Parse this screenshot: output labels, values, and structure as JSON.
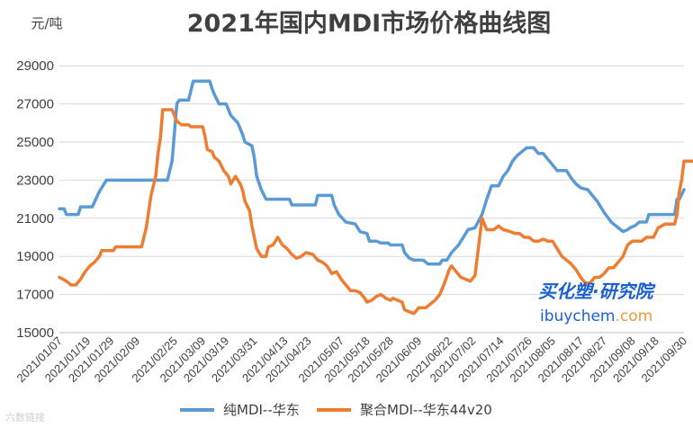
{
  "chart_data": {
    "type": "line",
    "title": "2021年国内MDI市场价格曲线图",
    "ylabel": "元/吨",
    "ylim": [
      15000,
      30000
    ],
    "yticks": [
      15000,
      17000,
      19000,
      21000,
      23000,
      25000,
      27000,
      29000
    ],
    "ytick_labels": [
      "15000",
      "17000",
      "19000",
      "21000",
      "23000",
      "25000",
      "27000",
      "29000"
    ],
    "x_range": [
      0,
      266
    ],
    "x_ticks": [
      {
        "label": "2021/01/07",
        "i": 0
      },
      {
        "label": "2021/01/19",
        "i": 12
      },
      {
        "label": "2021/01/29",
        "i": 22
      },
      {
        "label": "2021/02/09",
        "i": 33
      },
      {
        "label": "2021/02/25",
        "i": 49
      },
      {
        "label": "2021/03/09",
        "i": 61
      },
      {
        "label": "2021/03/19",
        "i": 71
      },
      {
        "label": "2021/03/31",
        "i": 83
      },
      {
        "label": "2021/04/13",
        "i": 96
      },
      {
        "label": "2021/04/23",
        "i": 106
      },
      {
        "label": "2021/05/07",
        "i": 120
      },
      {
        "label": "2021/05/18",
        "i": 131
      },
      {
        "label": "2021/05/28",
        "i": 141
      },
      {
        "label": "2021/06/09",
        "i": 153
      },
      {
        "label": "2021/06/22",
        "i": 166
      },
      {
        "label": "2021/07/02",
        "i": 176
      },
      {
        "label": "2021/07/14",
        "i": 188
      },
      {
        "label": "2021/07/26",
        "i": 200
      },
      {
        "label": "2021/08/05",
        "i": 210
      },
      {
        "label": "2021/08/17",
        "i": 222
      },
      {
        "label": "2021/08/27",
        "i": 232
      },
      {
        "label": "2021/09/08",
        "i": 244
      },
      {
        "label": "2021/09/18",
        "i": 254
      },
      {
        "label": "2021/09/30",
        "i": 266
      }
    ],
    "grid": true,
    "legend_position": "bottom",
    "series": [
      {
        "name": "纯MDI--华东",
        "color": "#5b9bd5",
        "points": [
          [
            0,
            21500
          ],
          [
            2,
            21500
          ],
          [
            3,
            21200
          ],
          [
            8,
            21200
          ],
          [
            9,
            21600
          ],
          [
            14,
            21600
          ],
          [
            17,
            22400
          ],
          [
            20,
            23000
          ],
          [
            46,
            23000
          ],
          [
            48,
            24000
          ],
          [
            50,
            27000
          ],
          [
            51,
            27200
          ],
          [
            55,
            27200
          ],
          [
            56,
            27700
          ],
          [
            57,
            28200
          ],
          [
            64,
            28200
          ],
          [
            65,
            27800
          ],
          [
            66,
            27500
          ],
          [
            68,
            27000
          ],
          [
            71,
            27000
          ],
          [
            73,
            26400
          ],
          [
            76,
            26000
          ],
          [
            78,
            25400
          ],
          [
            79,
            25000
          ],
          [
            82,
            24800
          ],
          [
            83,
            24200
          ],
          [
            84,
            23200
          ],
          [
            86,
            22500
          ],
          [
            88,
            22000
          ],
          [
            98,
            22000
          ],
          [
            99,
            21700
          ],
          [
            109,
            21700
          ],
          [
            110,
            22200
          ],
          [
            116,
            22200
          ],
          [
            117,
            21700
          ],
          [
            119,
            21200
          ],
          [
            122,
            20800
          ],
          [
            126,
            20700
          ],
          [
            128,
            20300
          ],
          [
            131,
            20200
          ],
          [
            132,
            19800
          ],
          [
            135,
            19800
          ],
          [
            137,
            19700
          ],
          [
            140,
            19700
          ],
          [
            141,
            19600
          ],
          [
            146,
            19600
          ],
          [
            147,
            19200
          ],
          [
            149,
            18900
          ],
          [
            151,
            18800
          ],
          [
            155,
            18800
          ],
          [
            157,
            18600
          ],
          [
            162,
            18600
          ],
          [
            163,
            18800
          ],
          [
            165,
            18800
          ],
          [
            167,
            19200
          ],
          [
            170,
            19600
          ],
          [
            172,
            20000
          ],
          [
            174,
            20400
          ],
          [
            177,
            20500
          ],
          [
            180,
            21200
          ],
          [
            182,
            22000
          ],
          [
            184,
            22700
          ],
          [
            187,
            22700
          ],
          [
            189,
            23200
          ],
          [
            191,
            23500
          ],
          [
            193,
            24000
          ],
          [
            195,
            24300
          ],
          [
            197,
            24500
          ],
          [
            199,
            24700
          ],
          [
            202,
            24700
          ],
          [
            204,
            24400
          ],
          [
            206,
            24400
          ],
          [
            208,
            24100
          ],
          [
            210,
            23800
          ],
          [
            212,
            23500
          ],
          [
            216,
            23500
          ],
          [
            218,
            23100
          ],
          [
            220,
            22800
          ],
          [
            222,
            22600
          ],
          [
            225,
            22500
          ],
          [
            227,
            22200
          ],
          [
            229,
            21900
          ],
          [
            232,
            21300
          ],
          [
            235,
            20800
          ],
          [
            238,
            20500
          ],
          [
            240,
            20300
          ],
          [
            242,
            20400
          ],
          [
            243,
            20500
          ],
          [
            245,
            20600
          ],
          [
            247,
            20800
          ],
          [
            250,
            20800
          ],
          [
            251,
            21200
          ],
          [
            262,
            21200
          ],
          [
            263,
            22000
          ],
          [
            264,
            22000
          ],
          [
            266,
            22500
          ]
        ]
      },
      {
        "name": "聚合MDI--华东44v20",
        "color": "#ed7d31",
        "points": [
          [
            0,
            17900
          ],
          [
            3,
            17700
          ],
          [
            5,
            17500
          ],
          [
            7,
            17500
          ],
          [
            9,
            17800
          ],
          [
            11,
            18200
          ],
          [
            13,
            18500
          ],
          [
            15,
            18700
          ],
          [
            17,
            19000
          ],
          [
            18,
            19300
          ],
          [
            23,
            19300
          ],
          [
            24,
            19500
          ],
          [
            35,
            19500
          ],
          [
            37,
            20500
          ],
          [
            39,
            22200
          ],
          [
            41,
            23200
          ],
          [
            42,
            24400
          ],
          [
            43,
            25200
          ],
          [
            44,
            26700
          ],
          [
            48,
            26700
          ],
          [
            49,
            26400
          ],
          [
            50,
            26100
          ],
          [
            52,
            25900
          ],
          [
            55,
            25900
          ],
          [
            56,
            25800
          ],
          [
            61,
            25800
          ],
          [
            62,
            25300
          ],
          [
            63,
            24600
          ],
          [
            65,
            24500
          ],
          [
            66,
            24200
          ],
          [
            68,
            24000
          ],
          [
            70,
            23500
          ],
          [
            72,
            23200
          ],
          [
            73,
            22800
          ],
          [
            75,
            23200
          ],
          [
            77,
            22800
          ],
          [
            78,
            22500
          ],
          [
            79,
            21900
          ],
          [
            81,
            21400
          ],
          [
            82,
            20600
          ],
          [
            84,
            19400
          ],
          [
            86,
            19000
          ],
          [
            88,
            19000
          ],
          [
            89,
            19500
          ],
          [
            91,
            19600
          ],
          [
            93,
            20000
          ],
          [
            95,
            19600
          ],
          [
            97,
            19400
          ],
          [
            99,
            19100
          ],
          [
            101,
            18900
          ],
          [
            103,
            19000
          ],
          [
            105,
            19200
          ],
          [
            108,
            19100
          ],
          [
            110,
            18800
          ],
          [
            112,
            18700
          ],
          [
            114,
            18500
          ],
          [
            116,
            18100
          ],
          [
            118,
            18200
          ],
          [
            120,
            17800
          ],
          [
            122,
            17500
          ],
          [
            124,
            17200
          ],
          [
            126,
            17200
          ],
          [
            128,
            17100
          ],
          [
            130,
            16800
          ],
          [
            131,
            16600
          ],
          [
            133,
            16700
          ],
          [
            135,
            16900
          ],
          [
            137,
            17000
          ],
          [
            139,
            16800
          ],
          [
            141,
            16700
          ],
          [
            142,
            16800
          ],
          [
            144,
            16700
          ],
          [
            146,
            16600
          ],
          [
            147,
            16200
          ],
          [
            149,
            16100
          ],
          [
            151,
            16000
          ],
          [
            153,
            16300
          ],
          [
            156,
            16300
          ],
          [
            158,
            16500
          ],
          [
            160,
            16700
          ],
          [
            162,
            17000
          ],
          [
            164,
            17600
          ],
          [
            166,
            18300
          ],
          [
            167,
            18500
          ],
          [
            169,
            18200
          ],
          [
            171,
            17900
          ],
          [
            173,
            17800
          ],
          [
            175,
            17700
          ],
          [
            177,
            18000
          ],
          [
            179,
            20000
          ],
          [
            180,
            21000
          ],
          [
            181,
            20700
          ],
          [
            182,
            20400
          ],
          [
            185,
            20400
          ],
          [
            187,
            20600
          ],
          [
            189,
            20400
          ],
          [
            192,
            20300
          ],
          [
            194,
            20200
          ],
          [
            196,
            20200
          ],
          [
            198,
            20000
          ],
          [
            200,
            20000
          ],
          [
            202,
            19800
          ],
          [
            204,
            19800
          ],
          [
            206,
            19900
          ],
          [
            208,
            19800
          ],
          [
            210,
            19800
          ],
          [
            212,
            19400
          ],
          [
            214,
            19000
          ],
          [
            216,
            18800
          ],
          [
            218,
            18600
          ],
          [
            220,
            18300
          ],
          [
            222,
            17900
          ],
          [
            224,
            17600
          ],
          [
            226,
            17600
          ],
          [
            228,
            17900
          ],
          [
            230,
            17900
          ],
          [
            232,
            18100
          ],
          [
            234,
            18400
          ],
          [
            236,
            18400
          ],
          [
            238,
            18700
          ],
          [
            240,
            19000
          ],
          [
            242,
            19600
          ],
          [
            244,
            19800
          ],
          [
            246,
            19800
          ],
          [
            248,
            19800
          ],
          [
            250,
            20000
          ],
          [
            253,
            20000
          ],
          [
            255,
            20500
          ],
          [
            258,
            20700
          ],
          [
            260,
            20700
          ],
          [
            262,
            20700
          ],
          [
            263,
            21200
          ],
          [
            264,
            22400
          ],
          [
            265,
            23000
          ],
          [
            266,
            24000
          ],
          [
            270,
            24000
          ]
        ]
      }
    ]
  },
  "watermark": {
    "brand": "买化塑·研究院",
    "url_prefix": "ibuychem",
    "url_suffix": ".com",
    "source": "六数链接"
  }
}
